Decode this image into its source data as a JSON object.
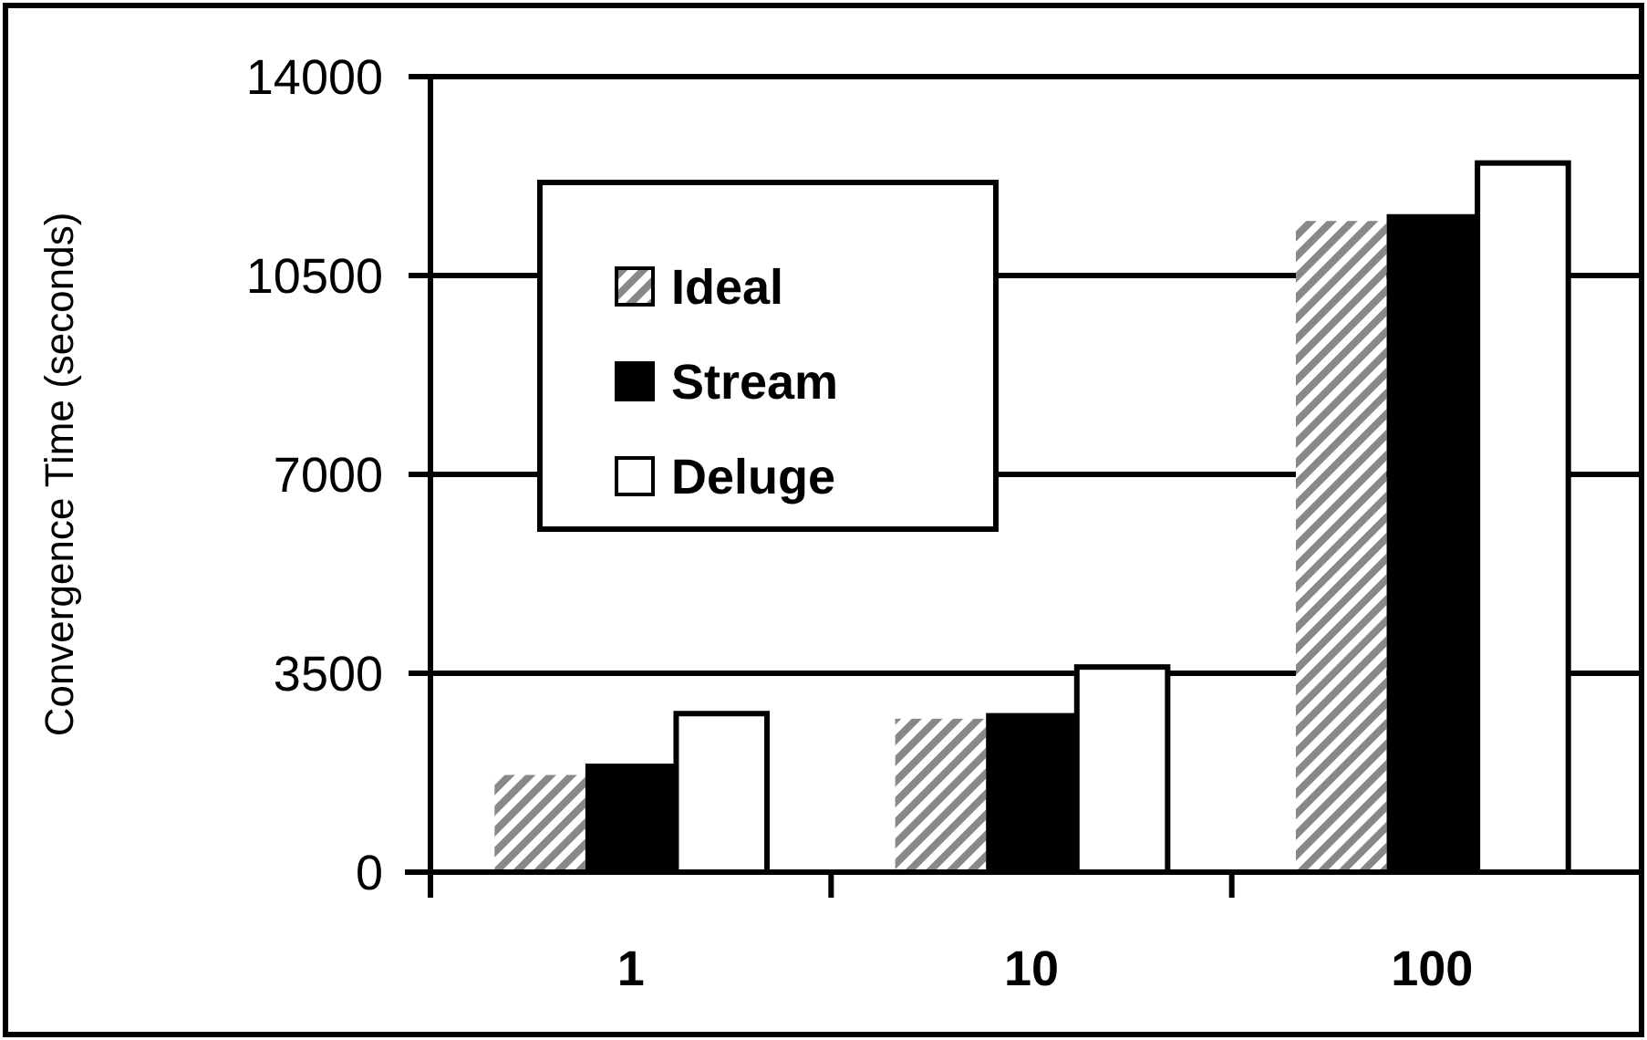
{
  "chart_data": {
    "type": "bar",
    "ylabel": "Convergence Time (seconds)",
    "categories": [
      "1",
      "10",
      "100"
    ],
    "series": [
      {
        "name": "Ideal",
        "color": "#888888",
        "values": [
          1710,
          2700,
          11460
        ]
      },
      {
        "name": "Stream",
        "color": "#000000",
        "values": [
          1910,
          2800,
          11580
        ]
      },
      {
        "name": "Deluge",
        "color": "#ffffff",
        "values": [
          2790,
          3610,
          12480
        ]
      }
    ],
    "ylim": [
      0,
      14000
    ],
    "yticks": [
      0,
      3500,
      7000,
      10500,
      14000
    ],
    "grid": "y",
    "legend": "top left"
  }
}
